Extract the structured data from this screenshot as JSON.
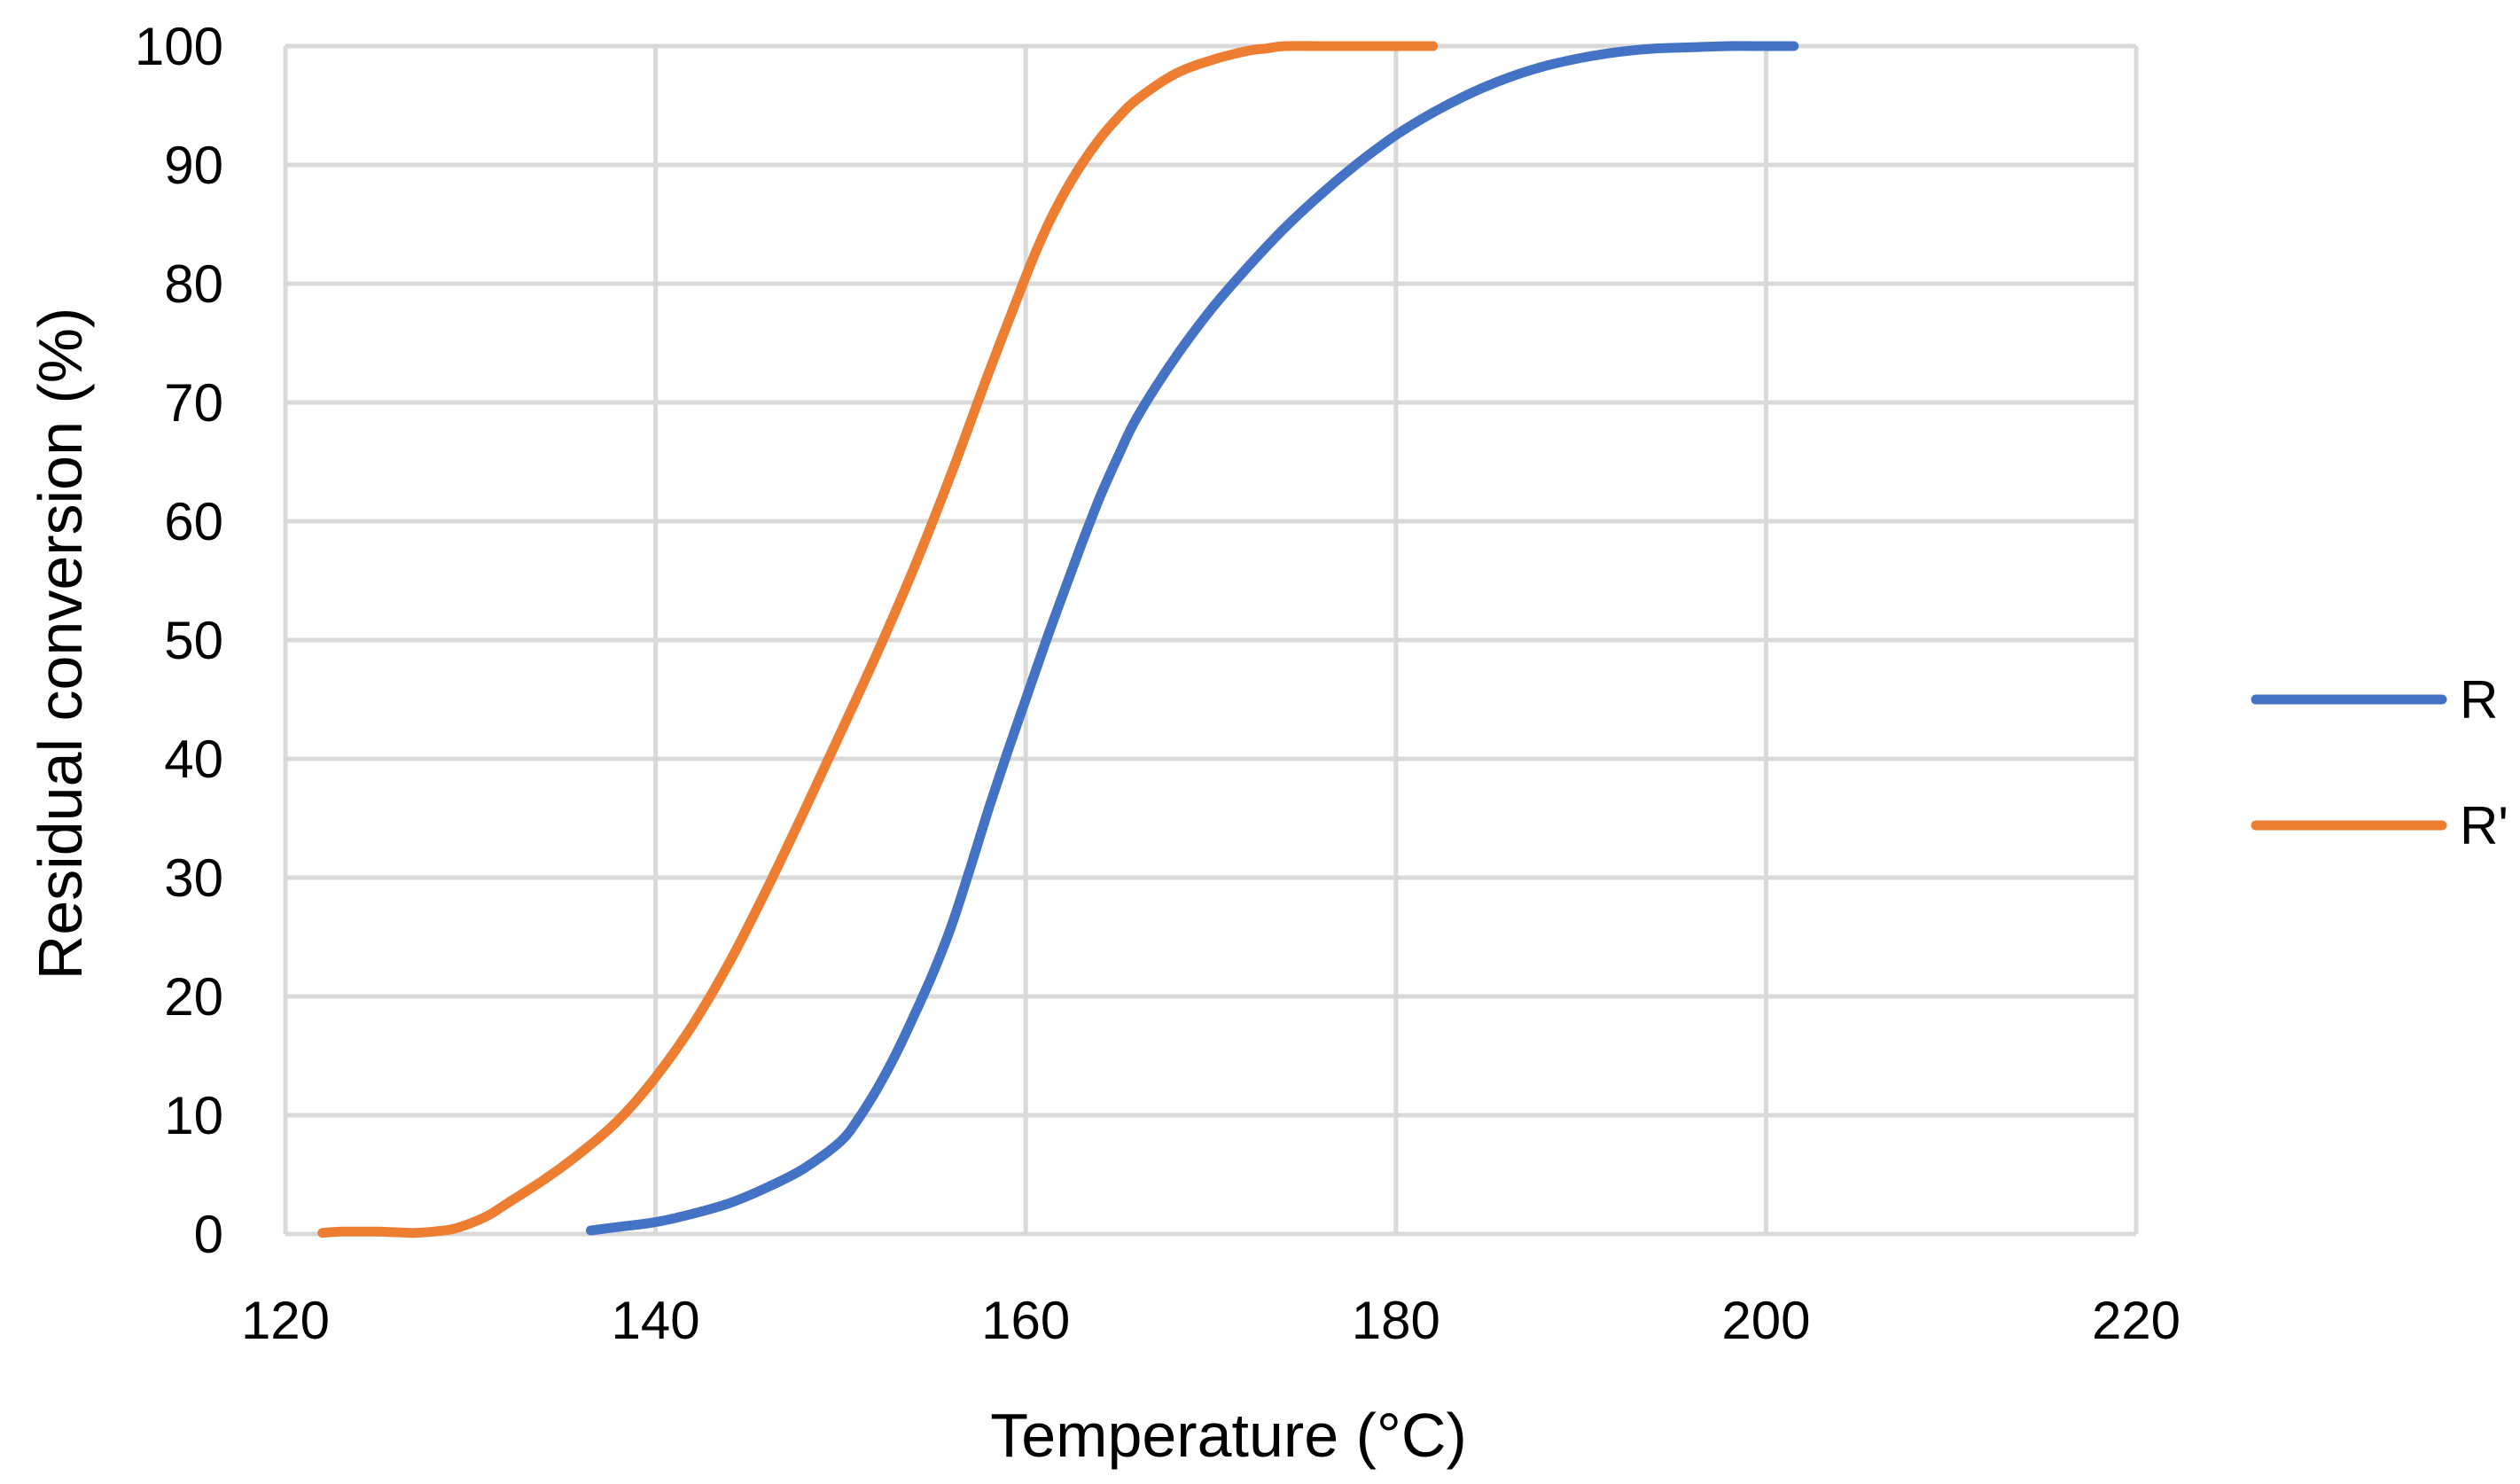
{
  "chart_data": {
    "type": "line",
    "title": "",
    "xlabel": "Temperature (°C)",
    "ylabel": "Residual conversion (%)",
    "xlim": [
      120,
      220
    ],
    "ylim": [
      0,
      100
    ],
    "x_ticks": [
      120,
      140,
      160,
      180,
      200,
      220
    ],
    "y_ticks": [
      0,
      10,
      20,
      30,
      40,
      50,
      60,
      70,
      80,
      90,
      100
    ],
    "grid": true,
    "legend_position": "right",
    "series": [
      {
        "name": "R",
        "color": "#4472c4",
        "x": [
          136.5,
          138,
          140,
          142,
          144,
          146,
          148,
          150,
          151,
          152,
          153,
          154,
          155,
          156,
          157,
          158,
          159,
          160,
          161,
          162,
          163,
          164,
          165,
          166,
          168,
          170,
          172,
          174,
          176,
          178,
          180,
          182,
          184,
          186,
          188,
          190,
          192,
          194,
          196,
          198,
          200,
          201.5
        ],
        "y": [
          0.3,
          0.6,
          1.0,
          1.7,
          2.6,
          3.9,
          5.5,
          7.8,
          9.8,
          12.3,
          15.2,
          18.5,
          22.0,
          26.0,
          30.8,
          35.8,
          40.5,
          45.0,
          49.5,
          53.8,
          58.0,
          62.0,
          65.5,
          68.7,
          73.6,
          77.8,
          81.4,
          84.7,
          87.6,
          90.2,
          92.5,
          94.4,
          96.0,
          97.3,
          98.3,
          99.0,
          99.5,
          99.8,
          99.9,
          100,
          100,
          100
        ]
      },
      {
        "name": "R'",
        "color": "#ed7d31",
        "x": [
          122,
          123,
          124,
          125,
          126,
          127,
          128,
          129,
          130,
          131,
          132,
          134,
          136,
          138,
          140,
          142,
          144,
          146,
          148,
          150,
          152,
          154,
          156,
          158,
          160,
          161,
          162,
          163,
          164,
          165,
          166,
          168,
          170,
          172,
          173,
          174,
          176,
          178,
          180,
          182
        ],
        "y": [
          0.1,
          0.2,
          0.2,
          0.2,
          0.15,
          0.1,
          0.2,
          0.4,
          0.9,
          1.6,
          2.6,
          4.6,
          6.9,
          9.6,
          13.2,
          17.6,
          22.9,
          29.0,
          35.5,
          42.2,
          49.0,
          56.2,
          64.1,
          72.5,
          80.6,
          84.3,
          87.4,
          90.0,
          92.2,
          94.0,
          95.5,
          97.6,
          98.8,
          99.6,
          99.8,
          100,
          100,
          100,
          100,
          100
        ]
      }
    ]
  }
}
